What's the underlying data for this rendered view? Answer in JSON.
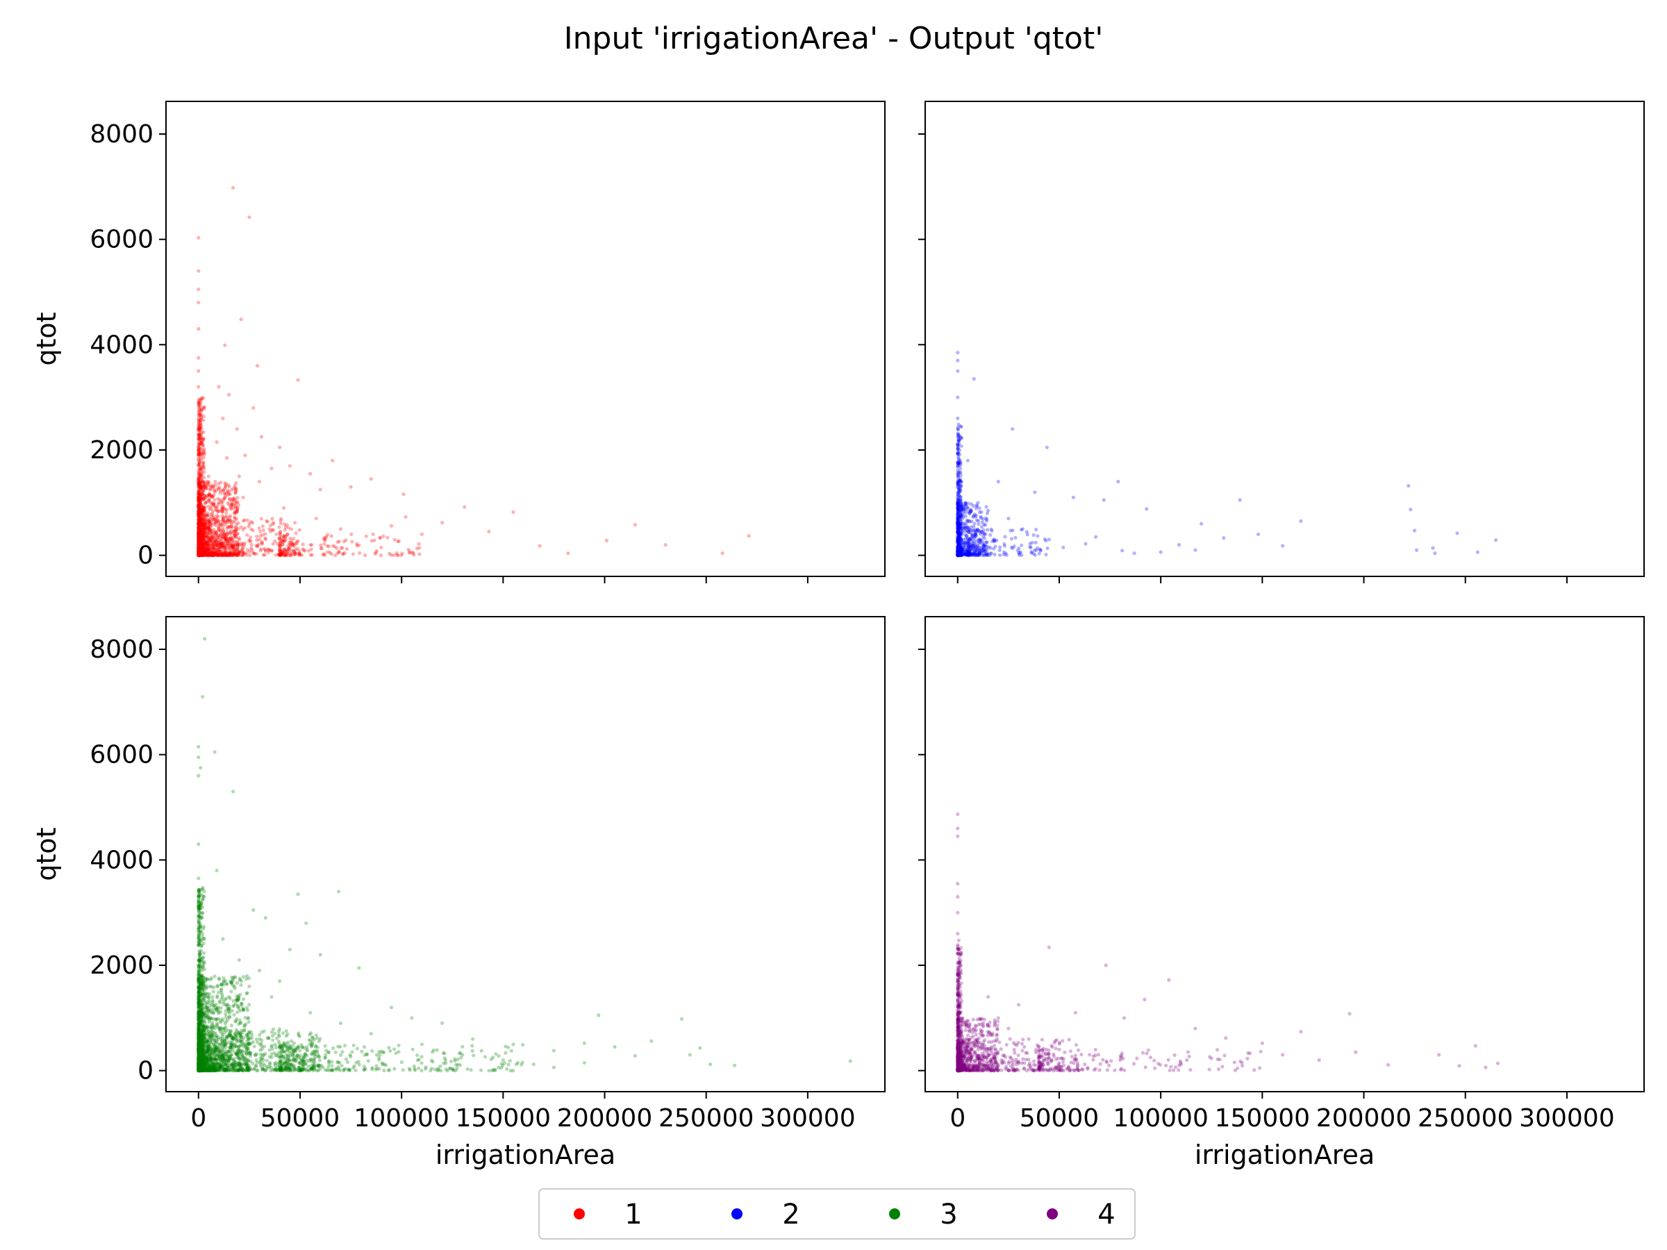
{
  "figure": {
    "title": "Input 'irrigationArea' - Output 'qtot'"
  },
  "legend": {
    "placement": "bottom-center",
    "entries": [
      {
        "label": "1",
        "color": "#ff0000"
      },
      {
        "label": "2",
        "color": "#0000ff"
      },
      {
        "label": "3",
        "color": "#008000"
      },
      {
        "label": "4",
        "color": "#800080"
      }
    ]
  },
  "chart_data": [
    {
      "type": "scatter",
      "name": "1",
      "color": "#ff0000",
      "xlabel": "",
      "ylabel": "qtot",
      "xlim": [
        -16000,
        338000
      ],
      "ylim": [
        -400,
        8620
      ],
      "xticks": [
        "0",
        "50000",
        "100000",
        "150000",
        "200000",
        "250000",
        "300000"
      ],
      "yticks": [
        "0",
        "2000",
        "4000",
        "6000",
        "8000"
      ],
      "show_xtick_labels": false,
      "show_ytick_labels": true,
      "grid": false,
      "points": [
        [
          0,
          6030
        ],
        [
          0,
          5400
        ],
        [
          0,
          5050
        ],
        [
          0,
          4800
        ],
        [
          0,
          4300
        ],
        [
          0,
          3750
        ],
        [
          0,
          3500
        ],
        [
          0,
          3200
        ],
        [
          0,
          2900
        ],
        [
          0,
          2600
        ],
        [
          0,
          2300
        ],
        [
          0,
          2000
        ],
        [
          0,
          1700
        ],
        [
          0,
          1400
        ],
        [
          0,
          1100
        ],
        [
          0,
          800
        ],
        [
          0,
          500
        ],
        [
          0,
          200
        ],
        [
          17000,
          6980
        ],
        [
          25000,
          6420
        ],
        [
          21000,
          4480
        ],
        [
          13000,
          3990
        ],
        [
          29000,
          3600
        ],
        [
          49000,
          3330
        ],
        [
          10000,
          3200
        ],
        [
          15000,
          3050
        ],
        [
          27000,
          2800
        ],
        [
          12000,
          2600
        ],
        [
          19000,
          2400
        ],
        [
          31000,
          2250
        ],
        [
          9000,
          2150
        ],
        [
          40000,
          2050
        ],
        [
          23000,
          1900
        ],
        [
          14000,
          1850
        ],
        [
          45000,
          1700
        ],
        [
          66000,
          1800
        ],
        [
          36000,
          1650
        ],
        [
          55000,
          1550
        ],
        [
          85000,
          1450
        ],
        [
          20000,
          1500
        ],
        [
          75000,
          1300
        ],
        [
          101000,
          1160
        ],
        [
          60000,
          1250
        ],
        [
          30000,
          1400
        ],
        [
          131000,
          920
        ],
        [
          155000,
          820
        ],
        [
          120000,
          620
        ],
        [
          102000,
          730
        ],
        [
          95000,
          560
        ],
        [
          110000,
          400
        ],
        [
          143000,
          450
        ],
        [
          168000,
          180
        ],
        [
          182000,
          40
        ],
        [
          201000,
          280
        ],
        [
          215000,
          580
        ],
        [
          230000,
          200
        ],
        [
          258000,
          40
        ],
        [
          271000,
          370
        ],
        [
          8000,
          1200
        ],
        [
          12000,
          900
        ],
        [
          18000,
          700
        ],
        [
          25000,
          600
        ],
        [
          35000,
          500
        ],
        [
          48000,
          420
        ],
        [
          62000,
          300
        ],
        [
          78000,
          220
        ],
        [
          90000,
          150
        ],
        [
          5000,
          1500
        ],
        [
          6000,
          1000
        ],
        [
          22000,
          1100
        ],
        [
          42000,
          900
        ],
        [
          58000,
          700
        ],
        [
          70000,
          500
        ],
        [
          86000,
          400
        ]
      ],
      "dense_regions": [
        {
          "x": [
            0,
            3000
          ],
          "y": [
            0,
            3000
          ],
          "n": 500
        },
        {
          "x": [
            0,
            20000
          ],
          "y": [
            0,
            1400
          ],
          "n": 900
        },
        {
          "x": [
            0,
            50000
          ],
          "y": [
            0,
            700
          ],
          "n": 500
        },
        {
          "x": [
            40000,
            110000
          ],
          "y": [
            0,
            400
          ],
          "n": 160
        }
      ]
    },
    {
      "type": "scatter",
      "name": "2",
      "color": "#0000ff",
      "xlabel": "",
      "ylabel": "",
      "xlim": [
        -16000,
        338000
      ],
      "ylim": [
        -400,
        8620
      ],
      "xticks": [
        "0",
        "50000",
        "100000",
        "150000",
        "200000",
        "250000",
        "300000"
      ],
      "yticks": [
        "0",
        "2000",
        "4000",
        "6000",
        "8000"
      ],
      "show_xtick_labels": false,
      "show_ytick_labels": false,
      "grid": false,
      "points": [
        [
          0,
          3850
        ],
        [
          0,
          3700
        ],
        [
          0,
          3500
        ],
        [
          0,
          3000
        ],
        [
          0,
          2600
        ],
        [
          0,
          2300
        ],
        [
          8000,
          3350
        ],
        [
          27000,
          2400
        ],
        [
          44000,
          2050
        ],
        [
          20000,
          1400
        ],
        [
          38000,
          1200
        ],
        [
          57000,
          1100
        ],
        [
          72000,
          1050
        ],
        [
          79000,
          1400
        ],
        [
          93000,
          880
        ],
        [
          120000,
          600
        ],
        [
          139000,
          1050
        ],
        [
          131000,
          330
        ],
        [
          148000,
          400
        ],
        [
          169000,
          650
        ],
        [
          222000,
          1320
        ],
        [
          223000,
          870
        ],
        [
          225000,
          470
        ],
        [
          246000,
          420
        ],
        [
          265000,
          290
        ],
        [
          226000,
          100
        ],
        [
          234000,
          140
        ],
        [
          235000,
          40
        ],
        [
          256000,
          60
        ],
        [
          117000,
          100
        ],
        [
          100000,
          60
        ],
        [
          87000,
          40
        ],
        [
          160000,
          180
        ],
        [
          5000,
          1800
        ],
        [
          10000,
          1000
        ],
        [
          15000,
          850
        ],
        [
          25000,
          700
        ],
        [
          32000,
          500
        ],
        [
          45000,
          300
        ],
        [
          52000,
          150
        ],
        [
          63000,
          220
        ],
        [
          68000,
          350
        ],
        [
          81000,
          90
        ],
        [
          109000,
          200
        ]
      ],
      "dense_regions": [
        {
          "x": [
            0,
            2000
          ],
          "y": [
            0,
            2500
          ],
          "n": 300
        },
        {
          "x": [
            0,
            15000
          ],
          "y": [
            0,
            1000
          ],
          "n": 400
        },
        {
          "x": [
            5000,
            45000
          ],
          "y": [
            0,
            500
          ],
          "n": 150
        }
      ]
    },
    {
      "type": "scatter",
      "name": "3",
      "color": "#008000",
      "xlabel": "irrigationArea",
      "ylabel": "qtot",
      "xlim": [
        -16000,
        338000
      ],
      "ylim": [
        -400,
        8620
      ],
      "xticks": [
        "0",
        "50000",
        "100000",
        "150000",
        "200000",
        "250000",
        "300000"
      ],
      "yticks": [
        "0",
        "2000",
        "4000",
        "6000",
        "8000"
      ],
      "show_xtick_labels": true,
      "show_ytick_labels": true,
      "grid": false,
      "points": [
        [
          3000,
          8200
        ],
        [
          2000,
          7100
        ],
        [
          0,
          6150
        ],
        [
          0,
          5950
        ],
        [
          0,
          5600
        ],
        [
          0,
          4300
        ],
        [
          0,
          3650
        ],
        [
          0,
          3200
        ],
        [
          8000,
          6050
        ],
        [
          1000,
          5750
        ],
        [
          17000,
          5300
        ],
        [
          9000,
          3800
        ],
        [
          27000,
          3050
        ],
        [
          33000,
          2900
        ],
        [
          49000,
          3350
        ],
        [
          53000,
          2800
        ],
        [
          69000,
          3400
        ],
        [
          45000,
          2300
        ],
        [
          60000,
          2200
        ],
        [
          79000,
          1950
        ],
        [
          40000,
          1700
        ],
        [
          25000,
          1600
        ],
        [
          95000,
          1200
        ],
        [
          105000,
          1000
        ],
        [
          120000,
          900
        ],
        [
          135000,
          600
        ],
        [
          155000,
          500
        ],
        [
          175000,
          380
        ],
        [
          190000,
          520
        ],
        [
          205000,
          450
        ],
        [
          215000,
          280
        ],
        [
          223000,
          560
        ],
        [
          242000,
          300
        ],
        [
          238000,
          980
        ],
        [
          247000,
          430
        ],
        [
          252000,
          120
        ],
        [
          264000,
          100
        ],
        [
          321000,
          180
        ],
        [
          197000,
          1050
        ],
        [
          190000,
          150
        ],
        [
          150000,
          200
        ],
        [
          165000,
          120
        ],
        [
          175000,
          60
        ],
        [
          12000,
          2500
        ],
        [
          20000,
          2100
        ],
        [
          30000,
          1900
        ],
        [
          36000,
          1400
        ],
        [
          55000,
          1100
        ],
        [
          70000,
          900
        ],
        [
          85000,
          700
        ],
        [
          110000,
          500
        ],
        [
          130000,
          300
        ],
        [
          145000,
          250
        ]
      ],
      "dense_regions": [
        {
          "x": [
            0,
            3000
          ],
          "y": [
            0,
            3500
          ],
          "n": 500
        },
        {
          "x": [
            0,
            25000
          ],
          "y": [
            0,
            1800
          ],
          "n": 1000
        },
        {
          "x": [
            0,
            60000
          ],
          "y": [
            0,
            800
          ],
          "n": 800
        },
        {
          "x": [
            40000,
            160000
          ],
          "y": [
            0,
            500
          ],
          "n": 350
        }
      ]
    },
    {
      "type": "scatter",
      "name": "4",
      "color": "#800080",
      "xlabel": "irrigationArea",
      "ylabel": "",
      "xlim": [
        -16000,
        338000
      ],
      "ylim": [
        -400,
        8620
      ],
      "xticks": [
        "0",
        "50000",
        "100000",
        "150000",
        "200000",
        "250000",
        "300000"
      ],
      "yticks": [
        "0",
        "2000",
        "4000",
        "6000",
        "8000"
      ],
      "show_xtick_labels": true,
      "show_ytick_labels": false,
      "grid": false,
      "points": [
        [
          0,
          4870
        ],
        [
          0,
          4600
        ],
        [
          0,
          4450
        ],
        [
          0,
          3550
        ],
        [
          0,
          3300
        ],
        [
          0,
          3000
        ],
        [
          0,
          2600
        ],
        [
          45000,
          2340
        ],
        [
          73000,
          2000
        ],
        [
          104000,
          1720
        ],
        [
          92000,
          1350
        ],
        [
          30000,
          1250
        ],
        [
          58000,
          1100
        ],
        [
          82000,
          1000
        ],
        [
          117000,
          800
        ],
        [
          132000,
          620
        ],
        [
          150000,
          520
        ],
        [
          169000,
          740
        ],
        [
          193000,
          1080
        ],
        [
          196000,
          350
        ],
        [
          212000,
          110
        ],
        [
          237000,
          300
        ],
        [
          255000,
          470
        ],
        [
          266000,
          140
        ],
        [
          260000,
          60
        ],
        [
          247000,
          90
        ],
        [
          178000,
          200
        ],
        [
          160000,
          300
        ],
        [
          140000,
          150
        ],
        [
          125000,
          230
        ],
        [
          15000,
          1400
        ],
        [
          20000,
          1000
        ],
        [
          25000,
          800
        ],
        [
          35000,
          600
        ],
        [
          50000,
          400
        ],
        [
          65000,
          300
        ],
        [
          80000,
          200
        ],
        [
          95000,
          250
        ],
        [
          110000,
          120
        ]
      ],
      "dense_regions": [
        {
          "x": [
            0,
            2000
          ],
          "y": [
            0,
            2500
          ],
          "n": 300
        },
        {
          "x": [
            0,
            20000
          ],
          "y": [
            0,
            1000
          ],
          "n": 500
        },
        {
          "x": [
            0,
            60000
          ],
          "y": [
            0,
            600
          ],
          "n": 350
        },
        {
          "x": [
            40000,
            150000
          ],
          "y": [
            0,
            400
          ],
          "n": 150
        }
      ]
    }
  ]
}
